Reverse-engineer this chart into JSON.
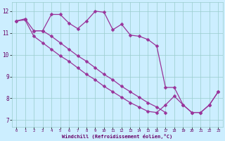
{
  "xlabel": "Windchill (Refroidissement éolien,°C)",
  "bg_color": "#cceeff",
  "line_color": "#993399",
  "xlim": [
    -0.5,
    23.5
  ],
  "ylim": [
    6.7,
    12.4
  ],
  "yticks": [
    7,
    8,
    9,
    10,
    11,
    12
  ],
  "xticks": [
    0,
    1,
    2,
    3,
    4,
    5,
    6,
    7,
    8,
    9,
    10,
    11,
    12,
    13,
    14,
    15,
    16,
    17,
    18,
    19,
    20,
    21,
    22,
    23
  ],
  "series1_x": [
    0,
    1,
    2,
    3,
    4,
    5,
    6,
    7,
    8,
    9,
    10,
    11,
    12,
    13,
    14,
    15,
    16,
    17,
    18,
    19,
    20,
    21,
    22,
    23
  ],
  "series1_y": [
    11.55,
    11.65,
    11.1,
    11.1,
    11.85,
    11.85,
    11.45,
    11.2,
    11.55,
    12.0,
    11.95,
    11.15,
    11.4,
    10.9,
    10.85,
    10.7,
    10.4,
    8.5,
    8.5,
    7.7,
    7.35,
    7.35,
    7.7,
    8.3
  ],
  "series2_x": [
    0,
    1,
    2,
    3,
    4,
    5,
    6,
    7,
    8,
    9,
    10,
    11,
    12,
    13,
    14,
    15,
    16,
    17,
    18,
    19,
    20,
    21,
    22,
    23
  ],
  "series2_y": [
    11.55,
    11.6,
    10.85,
    10.55,
    10.25,
    9.95,
    9.7,
    9.4,
    9.1,
    8.85,
    8.55,
    8.3,
    8.05,
    7.8,
    7.6,
    7.4,
    7.35,
    7.7,
    8.1,
    7.7,
    7.35,
    7.35,
    7.7,
    8.3
  ],
  "series3_x": [
    2,
    3,
    4,
    5,
    6,
    7,
    8,
    9,
    10,
    11,
    12,
    13,
    14,
    15,
    16,
    17
  ],
  "series3_y": [
    11.1,
    11.1,
    10.85,
    10.55,
    10.25,
    9.95,
    9.7,
    9.4,
    9.1,
    8.85,
    8.55,
    8.3,
    8.05,
    7.8,
    7.6,
    7.35
  ]
}
